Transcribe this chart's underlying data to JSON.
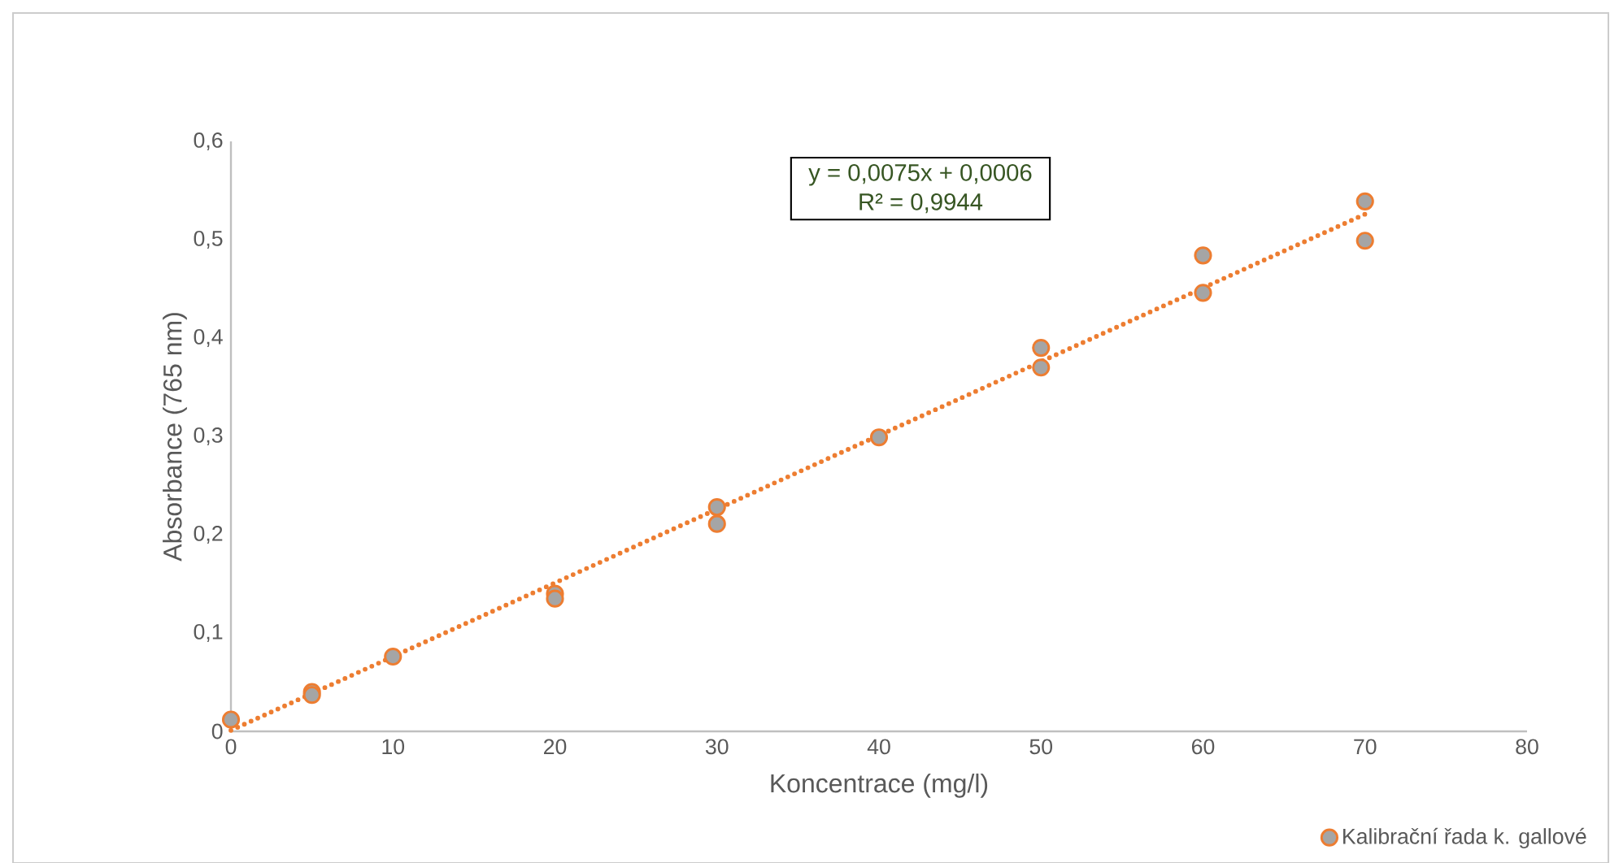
{
  "chart_data": {
    "type": "scatter",
    "xlabel": "Koncentrace (mg/l)",
    "ylabel": "Absorbance (765 nm)",
    "annotations": [
      "y = 0,0075x + 0,0006",
      "R² = 0,9944"
    ],
    "xlim": [
      0,
      80
    ],
    "xticks": [
      0,
      10,
      20,
      30,
      40,
      50,
      60,
      70,
      80
    ],
    "ylim": [
      0,
      0.6
    ],
    "yticks": [
      0,
      {
        "value": 0.1,
        "label": "0,1"
      },
      {
        "value": 0.2,
        "label": "0,2"
      },
      {
        "value": 0.3,
        "label": "0,3"
      },
      {
        "value": 0.4,
        "label": "0,4"
      },
      {
        "value": 0.5,
        "label": "0,5"
      },
      {
        "value": 0.6,
        "label": "0,6"
      }
    ],
    "grid": false,
    "legend": "bottom right",
    "marker": "circle",
    "series": [
      {
        "name": "Kalibrační řada k. gallové",
        "color": "#a5a5a5",
        "x": [
          0,
          5,
          5,
          10,
          20,
          20,
          30,
          30,
          40,
          50,
          50,
          60,
          60,
          70,
          70
        ],
        "values": [
          0.012,
          0.04,
          0.037,
          0.076,
          0.14,
          0.135,
          0.228,
          0.211,
          0.299,
          0.39,
          0.37,
          0.484,
          0.446,
          0.539,
          0.499
        ]
      },
      {
        "type": "line",
        "color": "#ed7d31",
        "line_style": "dotted",
        "marker": "none",
        "x": [
          0,
          70
        ],
        "values": [
          0.001,
          0.526
        ]
      }
    ]
  }
}
